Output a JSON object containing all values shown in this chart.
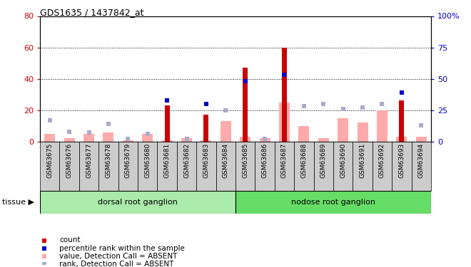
{
  "title": "GDS1635 / 1437842_at",
  "samples": [
    "GSM63675",
    "GSM63676",
    "GSM63677",
    "GSM63678",
    "GSM63679",
    "GSM63680",
    "GSM63681",
    "GSM63682",
    "GSM63683",
    "GSM63684",
    "GSM63685",
    "GSM63686",
    "GSM63687",
    "GSM63688",
    "GSM63689",
    "GSM63690",
    "GSM63691",
    "GSM63692",
    "GSM63693",
    "GSM63694"
  ],
  "count_values": [
    0,
    0,
    0,
    0,
    0,
    0,
    23,
    0,
    17,
    0,
    47,
    0,
    60,
    0,
    0,
    0,
    0,
    0,
    26,
    0
  ],
  "rank_values": [
    0,
    0,
    0,
    0,
    0,
    0,
    33,
    0,
    30,
    0,
    48,
    0,
    53,
    0,
    0,
    0,
    0,
    0,
    39,
    0
  ],
  "absent_value_values": [
    5,
    2,
    5,
    6,
    1,
    5,
    1,
    2,
    1,
    13,
    3,
    2,
    25,
    10,
    2,
    15,
    12,
    20,
    3,
    3
  ],
  "absent_rank_values": [
    17,
    8,
    7,
    14,
    2,
    6,
    2,
    2,
    1,
    25,
    2,
    2,
    29,
    28,
    30,
    26,
    27,
    30,
    23,
    13
  ],
  "group1_count": 10,
  "group2_count": 10,
  "group1_label": "dorsal root ganglion",
  "group2_label": "nodose root ganglion",
  "tissue_label": "tissue ▶",
  "left_ylim": [
    0,
    80
  ],
  "right_ylim": [
    0,
    100
  ],
  "left_yticks": [
    0,
    20,
    40,
    60,
    80
  ],
  "right_yticks": [
    0,
    25,
    50,
    75,
    100
  ],
  "right_yticklabels": [
    "0",
    "25",
    "50",
    "75",
    "100%"
  ],
  "count_color": "#cc0000",
  "rank_color": "#0000cc",
  "absent_value_color": "#ffaaaa",
  "absent_rank_color": "#aaaacc",
  "group1_color": "#aaeaaa",
  "group2_color": "#66dd66",
  "bg_color": "#cccccc",
  "grid_color": "black",
  "grid_style": "dotted",
  "legend_items": [
    [
      "#cc0000",
      "count"
    ],
    [
      "#0000cc",
      "percentile rank within the sample"
    ],
    [
      "#ffaaaa",
      "value, Detection Call = ABSENT"
    ],
    [
      "#aaaacc",
      "rank, Detection Call = ABSENT"
    ]
  ]
}
